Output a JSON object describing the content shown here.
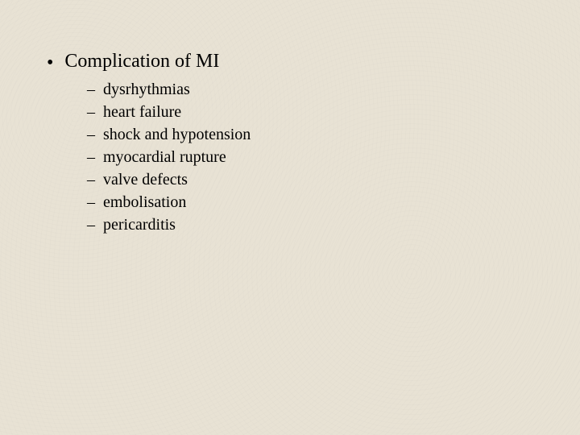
{
  "colors": {
    "background": "#e8e2d4",
    "text": "#000000"
  },
  "typography": {
    "family": "Times New Roman",
    "title_fontsize_pt": 18,
    "sub_fontsize_pt": 15
  },
  "bullets": {
    "main_marker": "•",
    "sub_marker": "–"
  },
  "content": {
    "title": "Complication of MI",
    "items": [
      "dysrhythmias",
      "heart failure",
      "shock and hypotension",
      "myocardial rupture",
      "valve defects",
      "embolisation",
      "pericarditis"
    ]
  }
}
